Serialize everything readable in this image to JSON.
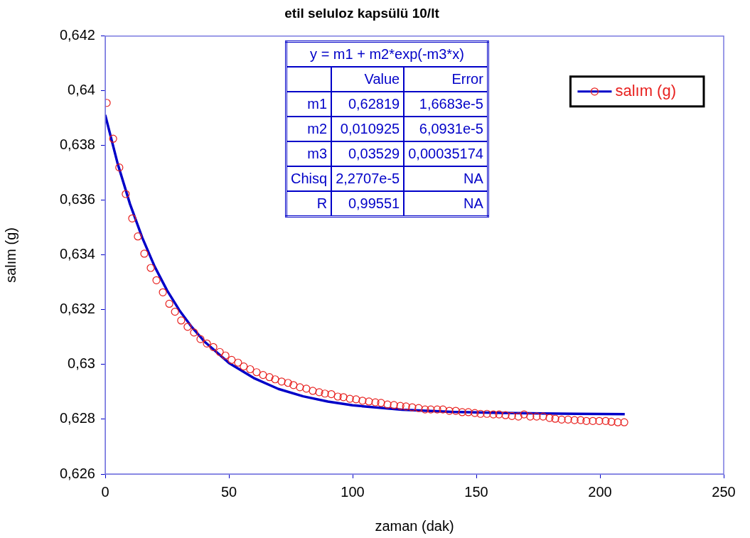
{
  "chart_data": {
    "type": "scatter",
    "title": "etil seluloz kapsülü 10/lt",
    "xlabel": "zaman (dak)",
    "ylabel": "salım (g)",
    "xlim": [
      0,
      250
    ],
    "xticks": [
      0,
      50,
      100,
      150,
      200,
      250
    ],
    "ylim": [
      0.626,
      0.642
    ],
    "yticks": [
      {
        "value": 0.626,
        "label": "0,626"
      },
      {
        "value": 0.628,
        "label": "0,628"
      },
      {
        "value": 0.63,
        "label": "0,63"
      },
      {
        "value": 0.632,
        "label": "0,632"
      },
      {
        "value": 0.634,
        "label": "0,634"
      },
      {
        "value": 0.636,
        "label": "0,636"
      },
      {
        "value": 0.638,
        "label": "0,638"
      },
      {
        "value": 0.64,
        "label": "0,64"
      },
      {
        "value": 0.642,
        "label": "0,642"
      }
    ],
    "legend": "top right",
    "annotations": [
      "y = m1 + m2*exp(-m3*x)",
      "Value",
      "Error",
      "m1",
      "0,62819",
      "1,6683e-5",
      "m2",
      "0,010925",
      "6,0931e-5",
      "m3",
      "0,03529",
      "0,00035174",
      "Chisq",
      "2,2707e-5",
      "NA",
      "R",
      "0,99551",
      "NA"
    ],
    "series": [
      {
        "name": "salım (g)",
        "marker": "circle",
        "color": "#e8201e",
        "x": [
          0.6,
          3.2,
          5.7,
          8.3,
          10.9,
          13.2,
          15.8,
          18.4,
          20.7,
          23.3,
          25.9,
          28.2,
          30.7,
          33.3,
          35.9,
          38.5,
          41.1,
          43.7,
          46.3,
          48.6,
          51.1,
          53.7,
          56.0,
          58.6,
          61.2,
          63.8,
          66.4,
          68.7,
          71.3,
          73.9,
          76.1,
          78.7,
          81.3,
          83.9,
          86.5,
          88.8,
          91.4,
          94.0,
          96.3,
          98.9,
          101.4,
          104.0,
          106.6,
          109.2,
          111.5,
          114.1,
          116.7,
          119.3,
          121.6,
          124.1,
          126.7,
          129.3,
          131.6,
          134.2,
          136.5,
          139.1,
          141.7,
          144.3,
          146.8,
          149.4,
          151.7,
          154.3,
          156.9,
          159.2,
          161.8,
          164.4,
          167.0,
          169.3,
          171.8,
          174.4,
          177.0,
          179.6,
          181.9,
          184.5,
          187.1,
          189.7,
          192.2,
          194.5,
          197.1,
          199.7,
          202.3,
          204.6,
          207.2,
          209.8
        ],
        "values": [
          0.63956,
          0.63825,
          0.6372,
          0.63623,
          0.63534,
          0.63468,
          0.63405,
          0.63353,
          0.63308,
          0.63264,
          0.63222,
          0.63193,
          0.63161,
          0.63138,
          0.63117,
          0.63093,
          0.63077,
          0.63064,
          0.63046,
          0.63033,
          0.63017,
          0.63007,
          0.62993,
          0.62983,
          0.62972,
          0.62962,
          0.62954,
          0.62946,
          0.62938,
          0.62933,
          0.62925,
          0.62917,
          0.62912,
          0.62904,
          0.62899,
          0.62894,
          0.62892,
          0.62883,
          0.62881,
          0.62875,
          0.62873,
          0.62868,
          0.62865,
          0.62862,
          0.6286,
          0.62854,
          0.62852,
          0.62849,
          0.62847,
          0.62844,
          0.62841,
          0.62836,
          0.62836,
          0.62836,
          0.62836,
          0.62831,
          0.62831,
          0.62826,
          0.62826,
          0.62823,
          0.6282,
          0.6282,
          0.62818,
          0.62818,
          0.62815,
          0.62812,
          0.6281,
          0.62818,
          0.6281,
          0.6281,
          0.6281,
          0.62805,
          0.62802,
          0.62799,
          0.62799,
          0.62797,
          0.62797,
          0.62794,
          0.62794,
          0.62794,
          0.62794,
          0.62791,
          0.62789,
          0.62789
        ]
      },
      {
        "type": "line",
        "color": "#0000c8",
        "x": [
          0,
          5,
          10,
          15,
          20,
          25,
          30,
          35,
          40,
          50,
          60,
          70,
          80,
          90,
          100,
          120,
          140,
          160,
          190,
          210
        ],
        "values": [
          0.63912,
          0.63735,
          0.63587,
          0.63463,
          0.63358,
          0.63271,
          0.63198,
          0.63137,
          0.63085,
          0.63006,
          0.62951,
          0.62911,
          0.62884,
          0.62865,
          0.62851,
          0.62835,
          0.62827,
          0.62823,
          0.6282,
          0.62819
        ]
      }
    ]
  }
}
